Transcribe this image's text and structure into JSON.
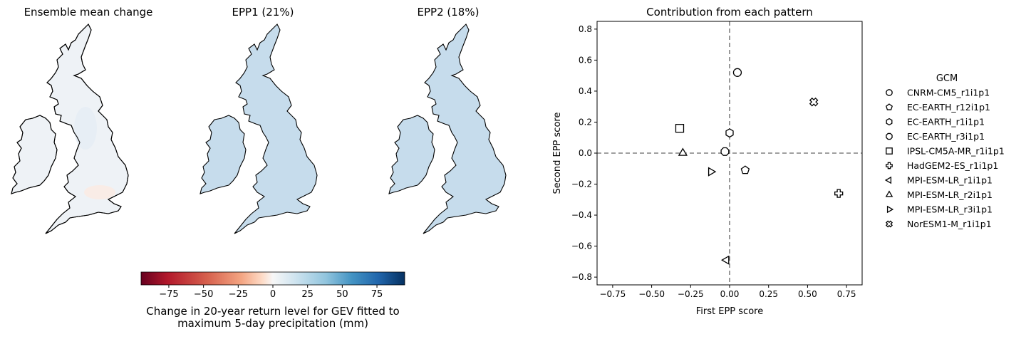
{
  "maps": {
    "panels": [
      {
        "title": "Ensemble mean change"
      },
      {
        "title": "EPP1 (21%)"
      },
      {
        "title": "EPP2 (18%)"
      }
    ],
    "colorbar": {
      "ticks": [
        "−75",
        "−50",
        "−25",
        "0",
        "25",
        "50",
        "75"
      ],
      "tick_values": [
        -75,
        -50,
        -25,
        0,
        25,
        50,
        75
      ],
      "range": [
        -95,
        95
      ],
      "colormap": "RdBu",
      "label_line1": "Change in 20-year return level for GEV fitted to",
      "label_line2": "maximum 5-day precipitation (mm)"
    }
  },
  "chart_data": {
    "type": "scatter",
    "title": "Contribution from each pattern",
    "xlabel": "First EPP score",
    "ylabel": "Second EPP score",
    "xlim": [
      -0.85,
      0.85
    ],
    "ylim": [
      -0.85,
      0.85
    ],
    "xticks": [
      -0.75,
      -0.5,
      -0.25,
      0.0,
      0.25,
      0.5,
      0.75
    ],
    "xtick_labels": [
      "−0.75",
      "−0.50",
      "−0.25",
      "0.00",
      "0.25",
      "0.50",
      "0.75"
    ],
    "yticks": [
      -0.8,
      -0.6,
      -0.4,
      -0.2,
      0.0,
      0.2,
      0.4,
      0.6,
      0.8
    ],
    "ytick_labels": [
      "−0.8",
      "−0.6",
      "−0.4",
      "−0.2",
      "0.0",
      "0.2",
      "0.4",
      "0.6",
      "0.8"
    ],
    "reference_lines": {
      "x": 0,
      "y": 0,
      "style": "dashed",
      "color": "#808080"
    },
    "legend": {
      "title": "GCM",
      "placement": "outside-right"
    },
    "series": [
      {
        "name": "CNRM-CM5_r1i1p1",
        "marker": "circle",
        "x": 0.05,
        "y": 0.52
      },
      {
        "name": "EC-EARTH_r12i1p1",
        "marker": "pentagon",
        "x": 0.1,
        "y": -0.11
      },
      {
        "name": "EC-EARTH_r1i1p1",
        "marker": "hexagon",
        "x": 0.0,
        "y": 0.13
      },
      {
        "name": "EC-EARTH_r3i1p1",
        "marker": "octagon",
        "x": -0.03,
        "y": 0.01
      },
      {
        "name": "IPSL-CM5A-MR_r1i1p1",
        "marker": "square",
        "x": -0.32,
        "y": 0.16
      },
      {
        "name": "HadGEM2-ES_r1i1p1",
        "marker": "plus",
        "x": 0.7,
        "y": -0.26
      },
      {
        "name": "MPI-ESM-LR_r1i1p1",
        "marker": "triangle-left",
        "x": -0.02,
        "y": -0.69
      },
      {
        "name": "MPI-ESM-LR_r2i1p1",
        "marker": "triangle-up",
        "x": -0.3,
        "y": 0.0
      },
      {
        "name": "MPI-ESM-LR_r3i1p1",
        "marker": "triangle-right",
        "x": -0.12,
        "y": -0.12
      },
      {
        "name": "NorESM1-M_r1i1p1",
        "marker": "x-filled",
        "x": 0.54,
        "y": 0.33
      }
    ]
  }
}
